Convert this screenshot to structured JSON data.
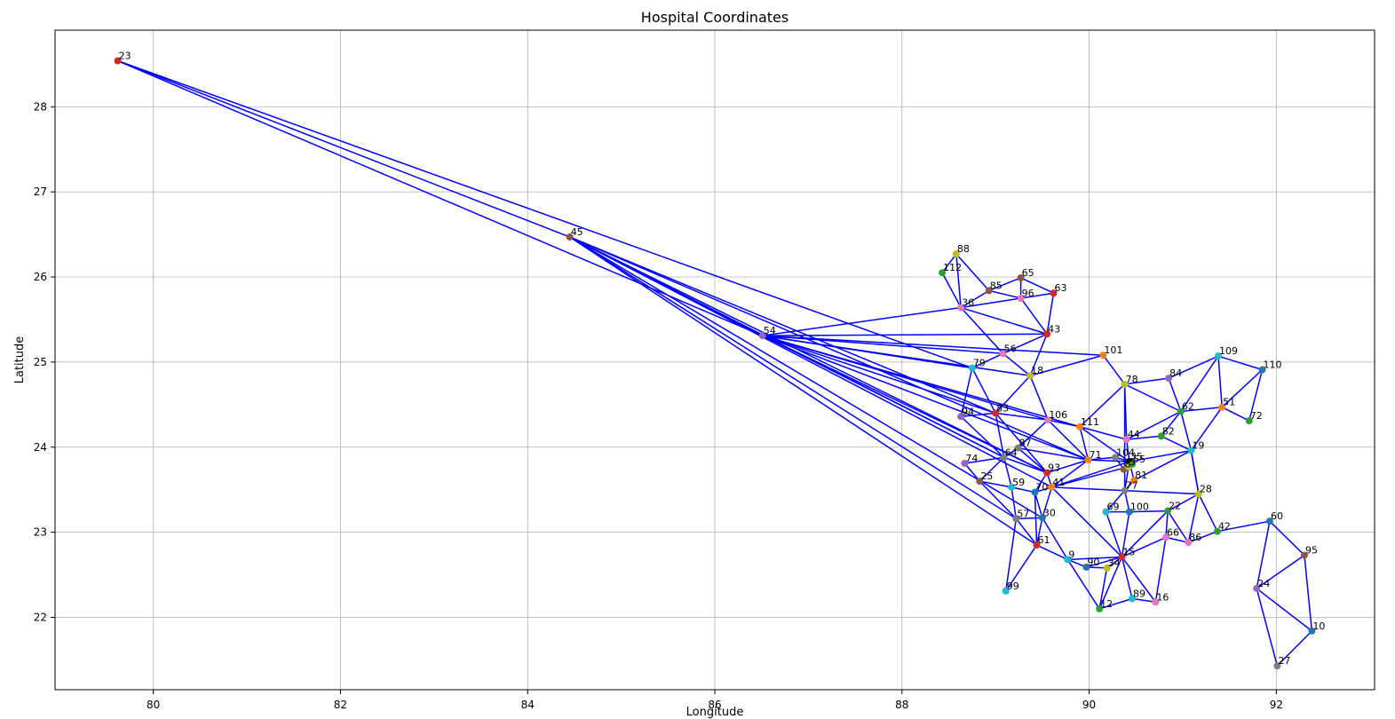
{
  "chart_data": {
    "type": "scatter",
    "title": "Hospital Coordinates",
    "xlabel": "Longitude",
    "ylabel": "Latitude",
    "xlim": [
      78.95,
      93.05
    ],
    "ylim": [
      21.15,
      28.9
    ],
    "xticks": [
      80,
      82,
      84,
      86,
      88,
      90,
      92
    ],
    "yticks": [
      22,
      23,
      24,
      25,
      26,
      27,
      28
    ],
    "grid": true,
    "edge_color": "#0000ff",
    "points": [
      {
        "id": "23",
        "x": 79.62,
        "y": 28.54,
        "color": "#d62728"
      },
      {
        "id": "45",
        "x": 84.45,
        "y": 26.47,
        "color": "#8c564b"
      },
      {
        "id": "88",
        "x": 88.58,
        "y": 26.27,
        "color": "#bcbd22"
      },
      {
        "id": "112",
        "x": 88.43,
        "y": 26.05,
        "color": "#2ca02c"
      },
      {
        "id": "65",
        "x": 89.27,
        "y": 25.99,
        "color": "#8c564b"
      },
      {
        "id": "85",
        "x": 88.93,
        "y": 25.84,
        "color": "#8c564b"
      },
      {
        "id": "63",
        "x": 89.62,
        "y": 25.81,
        "color": "#d62728"
      },
      {
        "id": "96",
        "x": 89.27,
        "y": 25.75,
        "color": "#e377c2"
      },
      {
        "id": "36",
        "x": 88.63,
        "y": 25.64,
        "color": "#e377c2"
      },
      {
        "id": "43",
        "x": 89.55,
        "y": 25.33,
        "color": "#d62728"
      },
      {
        "id": "54",
        "x": 86.51,
        "y": 25.31,
        "color": "#9467bd"
      },
      {
        "id": "56",
        "x": 89.08,
        "y": 25.1,
        "color": "#e377c2"
      },
      {
        "id": "101",
        "x": 90.15,
        "y": 25.08,
        "color": "#ff7f0e"
      },
      {
        "id": "109",
        "x": 91.38,
        "y": 25.07,
        "color": "#17becf"
      },
      {
        "id": "79",
        "x": 88.75,
        "y": 24.93,
        "color": "#17becf"
      },
      {
        "id": "110",
        "x": 91.85,
        "y": 24.91,
        "color": "#1f77b4"
      },
      {
        "id": "18",
        "x": 89.37,
        "y": 24.84,
        "color": "#bcbd22"
      },
      {
        "id": "84",
        "x": 90.85,
        "y": 24.81,
        "color": "#9467bd"
      },
      {
        "id": "78",
        "x": 90.38,
        "y": 24.74,
        "color": "#bcbd22"
      },
      {
        "id": "51",
        "x": 91.42,
        "y": 24.47,
        "color": "#ff7f0e"
      },
      {
        "id": "62",
        "x": 90.98,
        "y": 24.42,
        "color": "#2ca02c"
      },
      {
        "id": "83",
        "x": 89.0,
        "y": 24.4,
        "color": "#d62728"
      },
      {
        "id": "94",
        "x": 88.63,
        "y": 24.36,
        "color": "#9467bd"
      },
      {
        "id": "106",
        "x": 89.56,
        "y": 24.32,
        "color": "#e377c2"
      },
      {
        "id": "72",
        "x": 91.71,
        "y": 24.31,
        "color": "#2ca02c"
      },
      {
        "id": "111",
        "x": 89.9,
        "y": 24.24,
        "color": "#ff7f0e"
      },
      {
        "id": "82",
        "x": 90.77,
        "y": 24.13,
        "color": "#2ca02c"
      },
      {
        "id": "44",
        "x": 90.4,
        "y": 24.09,
        "color": "#e377c2"
      },
      {
        "id": "19",
        "x": 91.09,
        "y": 23.96,
        "color": "#17becf"
      },
      {
        "id": "87",
        "x": 89.24,
        "y": 23.99,
        "color": "#7f7f7f"
      },
      {
        "id": "64",
        "x": 89.09,
        "y": 23.88,
        "color": "#7f7f7f"
      },
      {
        "id": "104",
        "x": 90.28,
        "y": 23.88,
        "color": "#7f7f7f"
      },
      {
        "id": "71",
        "x": 89.99,
        "y": 23.85,
        "color": "#ff7f0e"
      },
      {
        "id": "74",
        "x": 88.67,
        "y": 23.81,
        "color": "#9467bd"
      },
      {
        "id": "93",
        "x": 89.55,
        "y": 23.7,
        "color": "#d62728"
      },
      {
        "id": "25",
        "x": 88.83,
        "y": 23.6,
        "color": "#8c564b"
      },
      {
        "id": "81",
        "x": 90.48,
        "y": 23.61,
        "color": "#ff7f0e"
      },
      {
        "id": "59",
        "x": 89.17,
        "y": 23.53,
        "color": "#17becf"
      },
      {
        "id": "41",
        "x": 89.6,
        "y": 23.53,
        "color": "#ff7f0e"
      },
      {
        "id": "77",
        "x": 90.38,
        "y": 23.49,
        "color": "#7f7f7f"
      },
      {
        "id": "70",
        "x": 89.42,
        "y": 23.47,
        "color": "#1f77b4"
      },
      {
        "id": "28",
        "x": 91.17,
        "y": 23.45,
        "color": "#bcbd22"
      },
      {
        "id": "22",
        "x": 90.84,
        "y": 23.25,
        "color": "#2ca02c"
      },
      {
        "id": "69",
        "x": 90.18,
        "y": 23.24,
        "color": "#17becf"
      },
      {
        "id": "100",
        "x": 90.43,
        "y": 23.24,
        "color": "#1f77b4"
      },
      {
        "id": "57",
        "x": 89.22,
        "y": 23.16,
        "color": "#7f7f7f"
      },
      {
        "id": "30",
        "x": 89.5,
        "y": 23.17,
        "color": "#1f77b4"
      },
      {
        "id": "60",
        "x": 91.93,
        "y": 23.13,
        "color": "#1f77b4"
      },
      {
        "id": "42",
        "x": 91.37,
        "y": 23.01,
        "color": "#2ca02c"
      },
      {
        "id": "66",
        "x": 90.82,
        "y": 22.94,
        "color": "#e377c2"
      },
      {
        "id": "86",
        "x": 91.06,
        "y": 22.88,
        "color": "#e377c2"
      },
      {
        "id": "61",
        "x": 89.44,
        "y": 22.85,
        "color": "#d62728"
      },
      {
        "id": "95",
        "x": 92.3,
        "y": 22.73,
        "color": "#8c564b"
      },
      {
        "id": "15",
        "x": 90.35,
        "y": 22.71,
        "color": "#d62728"
      },
      {
        "id": "9",
        "x": 89.77,
        "y": 22.68,
        "color": "#17becf"
      },
      {
        "id": "90",
        "x": 89.97,
        "y": 22.59,
        "color": "#1f77b4"
      },
      {
        "id": "34",
        "x": 90.19,
        "y": 22.58,
        "color": "#bcbd22"
      },
      {
        "id": "24",
        "x": 91.79,
        "y": 22.34,
        "color": "#9467bd"
      },
      {
        "id": "99",
        "x": 89.11,
        "y": 22.31,
        "color": "#17becf"
      },
      {
        "id": "89",
        "x": 90.46,
        "y": 22.22,
        "color": "#17becf"
      },
      {
        "id": "16",
        "x": 90.71,
        "y": 22.18,
        "color": "#e377c2"
      },
      {
        "id": "12",
        "x": 90.11,
        "y": 22.1,
        "color": "#2ca02c"
      },
      {
        "id": "10",
        "x": 92.38,
        "y": 21.84,
        "color": "#1f77b4"
      },
      {
        "id": "27",
        "x": 92.01,
        "y": 21.43,
        "color": "#7f7f7f"
      },
      {
        "id": "35",
        "x": 90.43,
        "y": 23.83,
        "color": "#000000"
      },
      {
        "id": "8",
        "x": 90.37,
        "y": 23.74,
        "color": "#8c564b"
      },
      {
        "id": "3",
        "x": 90.42,
        "y": 23.77,
        "color": "#bcbd22"
      },
      {
        "id": "55",
        "x": 90.46,
        "y": 23.8,
        "color": "#2ca02c"
      }
    ],
    "edges": [
      [
        "23",
        "45"
      ],
      [
        "23",
        "54"
      ],
      [
        "23",
        "79"
      ],
      [
        "45",
        "54"
      ],
      [
        "45",
        "83"
      ],
      [
        "45",
        "64"
      ],
      [
        "45",
        "93"
      ],
      [
        "45",
        "41"
      ],
      [
        "45",
        "57"
      ],
      [
        "45",
        "61"
      ],
      [
        "45",
        "71"
      ],
      [
        "45",
        "30"
      ],
      [
        "88",
        "112"
      ],
      [
        "88",
        "36"
      ],
      [
        "88",
        "85"
      ],
      [
        "112",
        "36"
      ],
      [
        "85",
        "65"
      ],
      [
        "85",
        "36"
      ],
      [
        "85",
        "96"
      ],
      [
        "65",
        "96"
      ],
      [
        "65",
        "63"
      ],
      [
        "96",
        "63"
      ],
      [
        "96",
        "36"
      ],
      [
        "96",
        "43"
      ],
      [
        "63",
        "43"
      ],
      [
        "36",
        "43"
      ],
      [
        "36",
        "54"
      ],
      [
        "36",
        "56"
      ],
      [
        "54",
        "43"
      ],
      [
        "54",
        "56"
      ],
      [
        "54",
        "101"
      ],
      [
        "54",
        "79"
      ],
      [
        "54",
        "18"
      ],
      [
        "54",
        "83"
      ],
      [
        "54",
        "106"
      ],
      [
        "54",
        "111"
      ],
      [
        "54",
        "64"
      ],
      [
        "54",
        "93"
      ],
      [
        "54",
        "71"
      ],
      [
        "43",
        "56"
      ],
      [
        "43",
        "18"
      ],
      [
        "56",
        "79"
      ],
      [
        "56",
        "18"
      ],
      [
        "79",
        "83"
      ],
      [
        "79",
        "94"
      ],
      [
        "18",
        "83"
      ],
      [
        "18",
        "106"
      ],
      [
        "18",
        "101"
      ],
      [
        "101",
        "78"
      ],
      [
        "78",
        "84"
      ],
      [
        "78",
        "62"
      ],
      [
        "78",
        "44"
      ],
      [
        "78",
        "111"
      ],
      [
        "78",
        "77"
      ],
      [
        "109",
        "84"
      ],
      [
        "109",
        "62"
      ],
      [
        "109",
        "51"
      ],
      [
        "109",
        "110"
      ],
      [
        "110",
        "51"
      ],
      [
        "110",
        "72"
      ],
      [
        "51",
        "72"
      ],
      [
        "51",
        "62"
      ],
      [
        "51",
        "19"
      ],
      [
        "62",
        "84"
      ],
      [
        "62",
        "82"
      ],
      [
        "62",
        "44"
      ],
      [
        "62",
        "19"
      ],
      [
        "83",
        "94"
      ],
      [
        "83",
        "106"
      ],
      [
        "83",
        "64"
      ],
      [
        "83",
        "93"
      ],
      [
        "94",
        "64"
      ],
      [
        "106",
        "111"
      ],
      [
        "106",
        "87"
      ],
      [
        "106",
        "71"
      ],
      [
        "111",
        "71"
      ],
      [
        "111",
        "44"
      ],
      [
        "111",
        "35"
      ],
      [
        "82",
        "44"
      ],
      [
        "82",
        "19"
      ],
      [
        "44",
        "35"
      ],
      [
        "19",
        "35"
      ],
      [
        "19",
        "28"
      ],
      [
        "87",
        "64"
      ],
      [
        "87",
        "71"
      ],
      [
        "87",
        "93"
      ],
      [
        "64",
        "74"
      ],
      [
        "64",
        "25"
      ],
      [
        "64",
        "59"
      ],
      [
        "64",
        "93"
      ],
      [
        "74",
        "25"
      ],
      [
        "25",
        "59"
      ],
      [
        "25",
        "57"
      ],
      [
        "71",
        "41"
      ],
      [
        "71",
        "93"
      ],
      [
        "71",
        "104"
      ],
      [
        "71",
        "35"
      ],
      [
        "104",
        "35"
      ],
      [
        "104",
        "8"
      ],
      [
        "93",
        "41"
      ],
      [
        "93",
        "70"
      ],
      [
        "41",
        "70"
      ],
      [
        "41",
        "35"
      ],
      [
        "41",
        "3"
      ],
      [
        "41",
        "77"
      ],
      [
        "41",
        "30"
      ],
      [
        "41",
        "15"
      ],
      [
        "81",
        "77"
      ],
      [
        "81",
        "35"
      ],
      [
        "81",
        "19"
      ],
      [
        "77",
        "28"
      ],
      [
        "77",
        "69"
      ],
      [
        "77",
        "100"
      ],
      [
        "77",
        "35"
      ],
      [
        "59",
        "70"
      ],
      [
        "59",
        "57"
      ],
      [
        "70",
        "30"
      ],
      [
        "70",
        "61"
      ],
      [
        "28",
        "22"
      ],
      [
        "28",
        "86"
      ],
      [
        "28",
        "42"
      ],
      [
        "28",
        "19"
      ],
      [
        "22",
        "100"
      ],
      [
        "22",
        "66"
      ],
      [
        "22",
        "15"
      ],
      [
        "22",
        "86"
      ],
      [
        "69",
        "100"
      ],
      [
        "69",
        "15"
      ],
      [
        "100",
        "15"
      ],
      [
        "57",
        "30"
      ],
      [
        "57",
        "61"
      ],
      [
        "57",
        "99"
      ],
      [
        "30",
        "61"
      ],
      [
        "30",
        "9"
      ],
      [
        "42",
        "86"
      ],
      [
        "42",
        "60"
      ],
      [
        "60",
        "95"
      ],
      [
        "60",
        "24"
      ],
      [
        "66",
        "86"
      ],
      [
        "66",
        "16"
      ],
      [
        "66",
        "15"
      ],
      [
        "61",
        "99"
      ],
      [
        "61",
        "9"
      ],
      [
        "95",
        "10"
      ],
      [
        "95",
        "24"
      ],
      [
        "15",
        "9"
      ],
      [
        "15",
        "90"
      ],
      [
        "15",
        "34"
      ],
      [
        "15",
        "89"
      ],
      [
        "15",
        "16"
      ],
      [
        "15",
        "12"
      ],
      [
        "9",
        "90"
      ],
      [
        "9",
        "12"
      ],
      [
        "90",
        "34"
      ],
      [
        "34",
        "12"
      ],
      [
        "24",
        "10"
      ],
      [
        "24",
        "27"
      ],
      [
        "10",
        "27"
      ],
      [
        "89",
        "16"
      ],
      [
        "89",
        "12"
      ]
    ]
  }
}
